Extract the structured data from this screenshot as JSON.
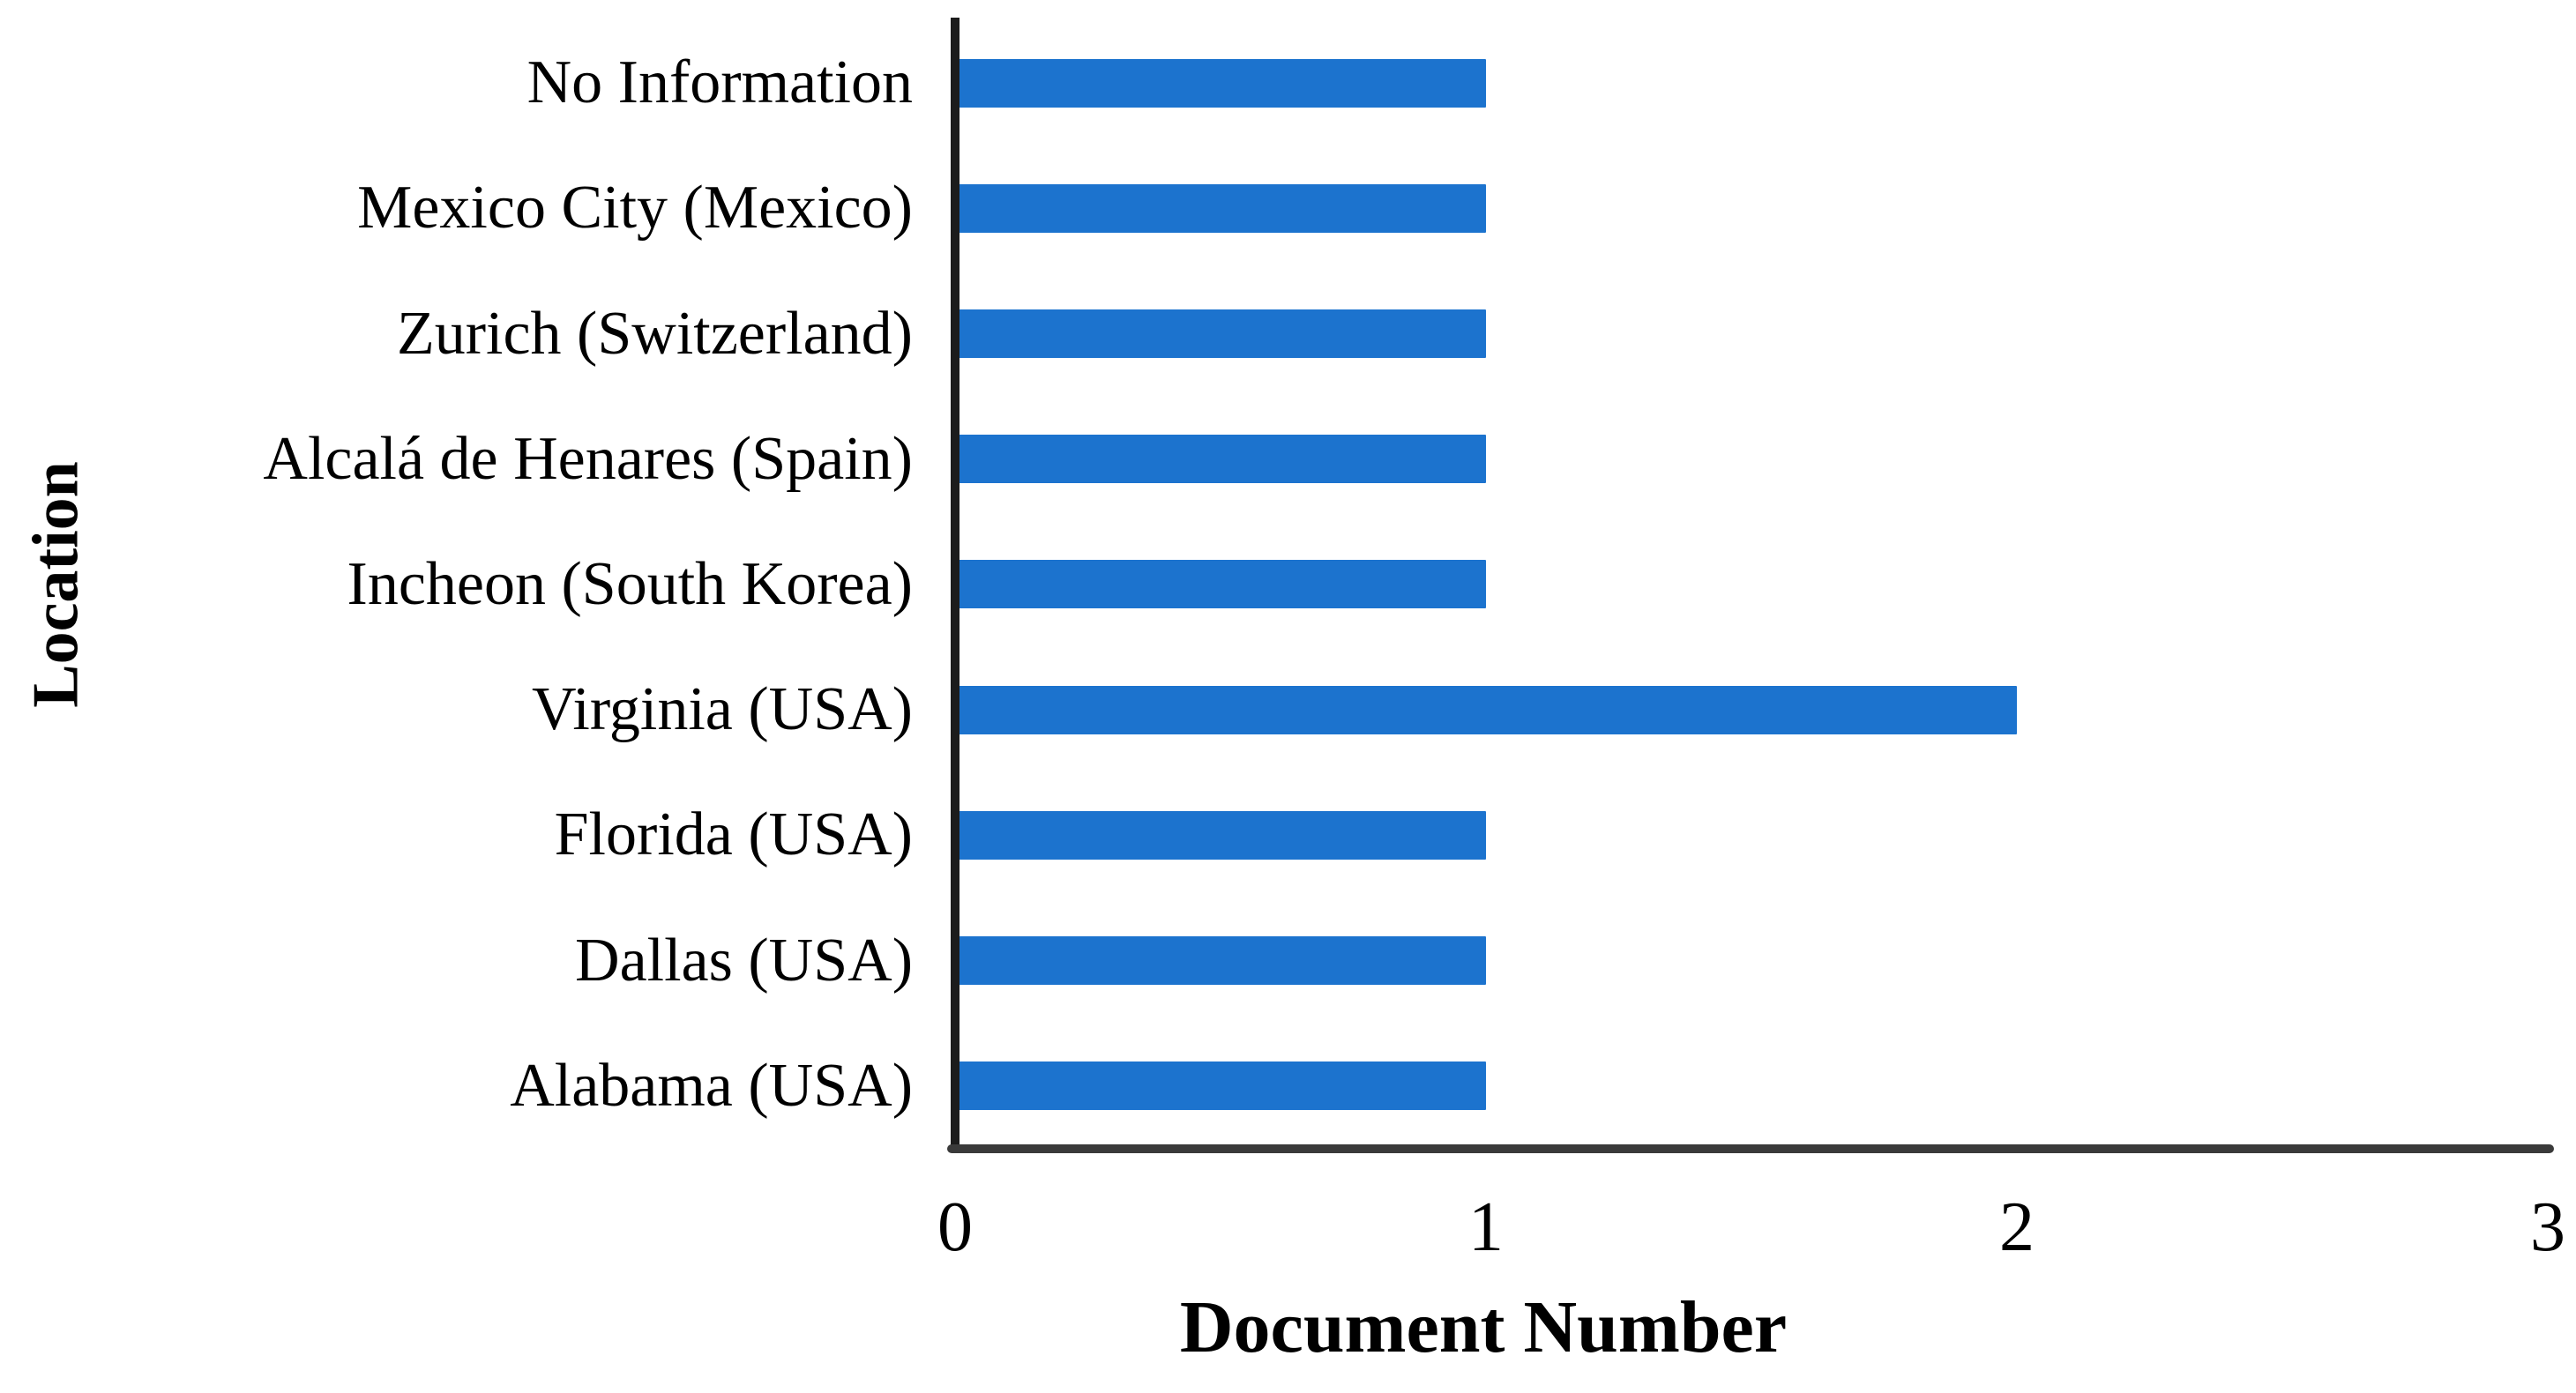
{
  "chart_data": {
    "type": "bar",
    "orientation": "horizontal",
    "title": "",
    "xlabel": "Document Number",
    "ylabel": "Location",
    "categories": [
      "No Information",
      "Mexico City (Mexico)",
      "Zurich (Switzerland)",
      "Alcalá de Henares (Spain)",
      "Incheon (South Korea)",
      "Virginia (USA)",
      "Florida (USA)",
      "Dallas (USA)",
      "Alabama (USA)"
    ],
    "values": [
      1,
      1,
      1,
      1,
      1,
      2,
      1,
      1,
      1
    ],
    "xticks": [
      "0",
      "1",
      "2",
      "3"
    ],
    "xtick_values": [
      0,
      1,
      2,
      3
    ],
    "xlim": [
      0,
      3
    ],
    "grid": "off",
    "legend": "none",
    "colors": {
      "bar": "#1C73CE",
      "y_axis_line": "#1c1c1c",
      "x_axis_line": "#3a3a3a",
      "text": "#000000",
      "background": "#ffffff"
    }
  }
}
